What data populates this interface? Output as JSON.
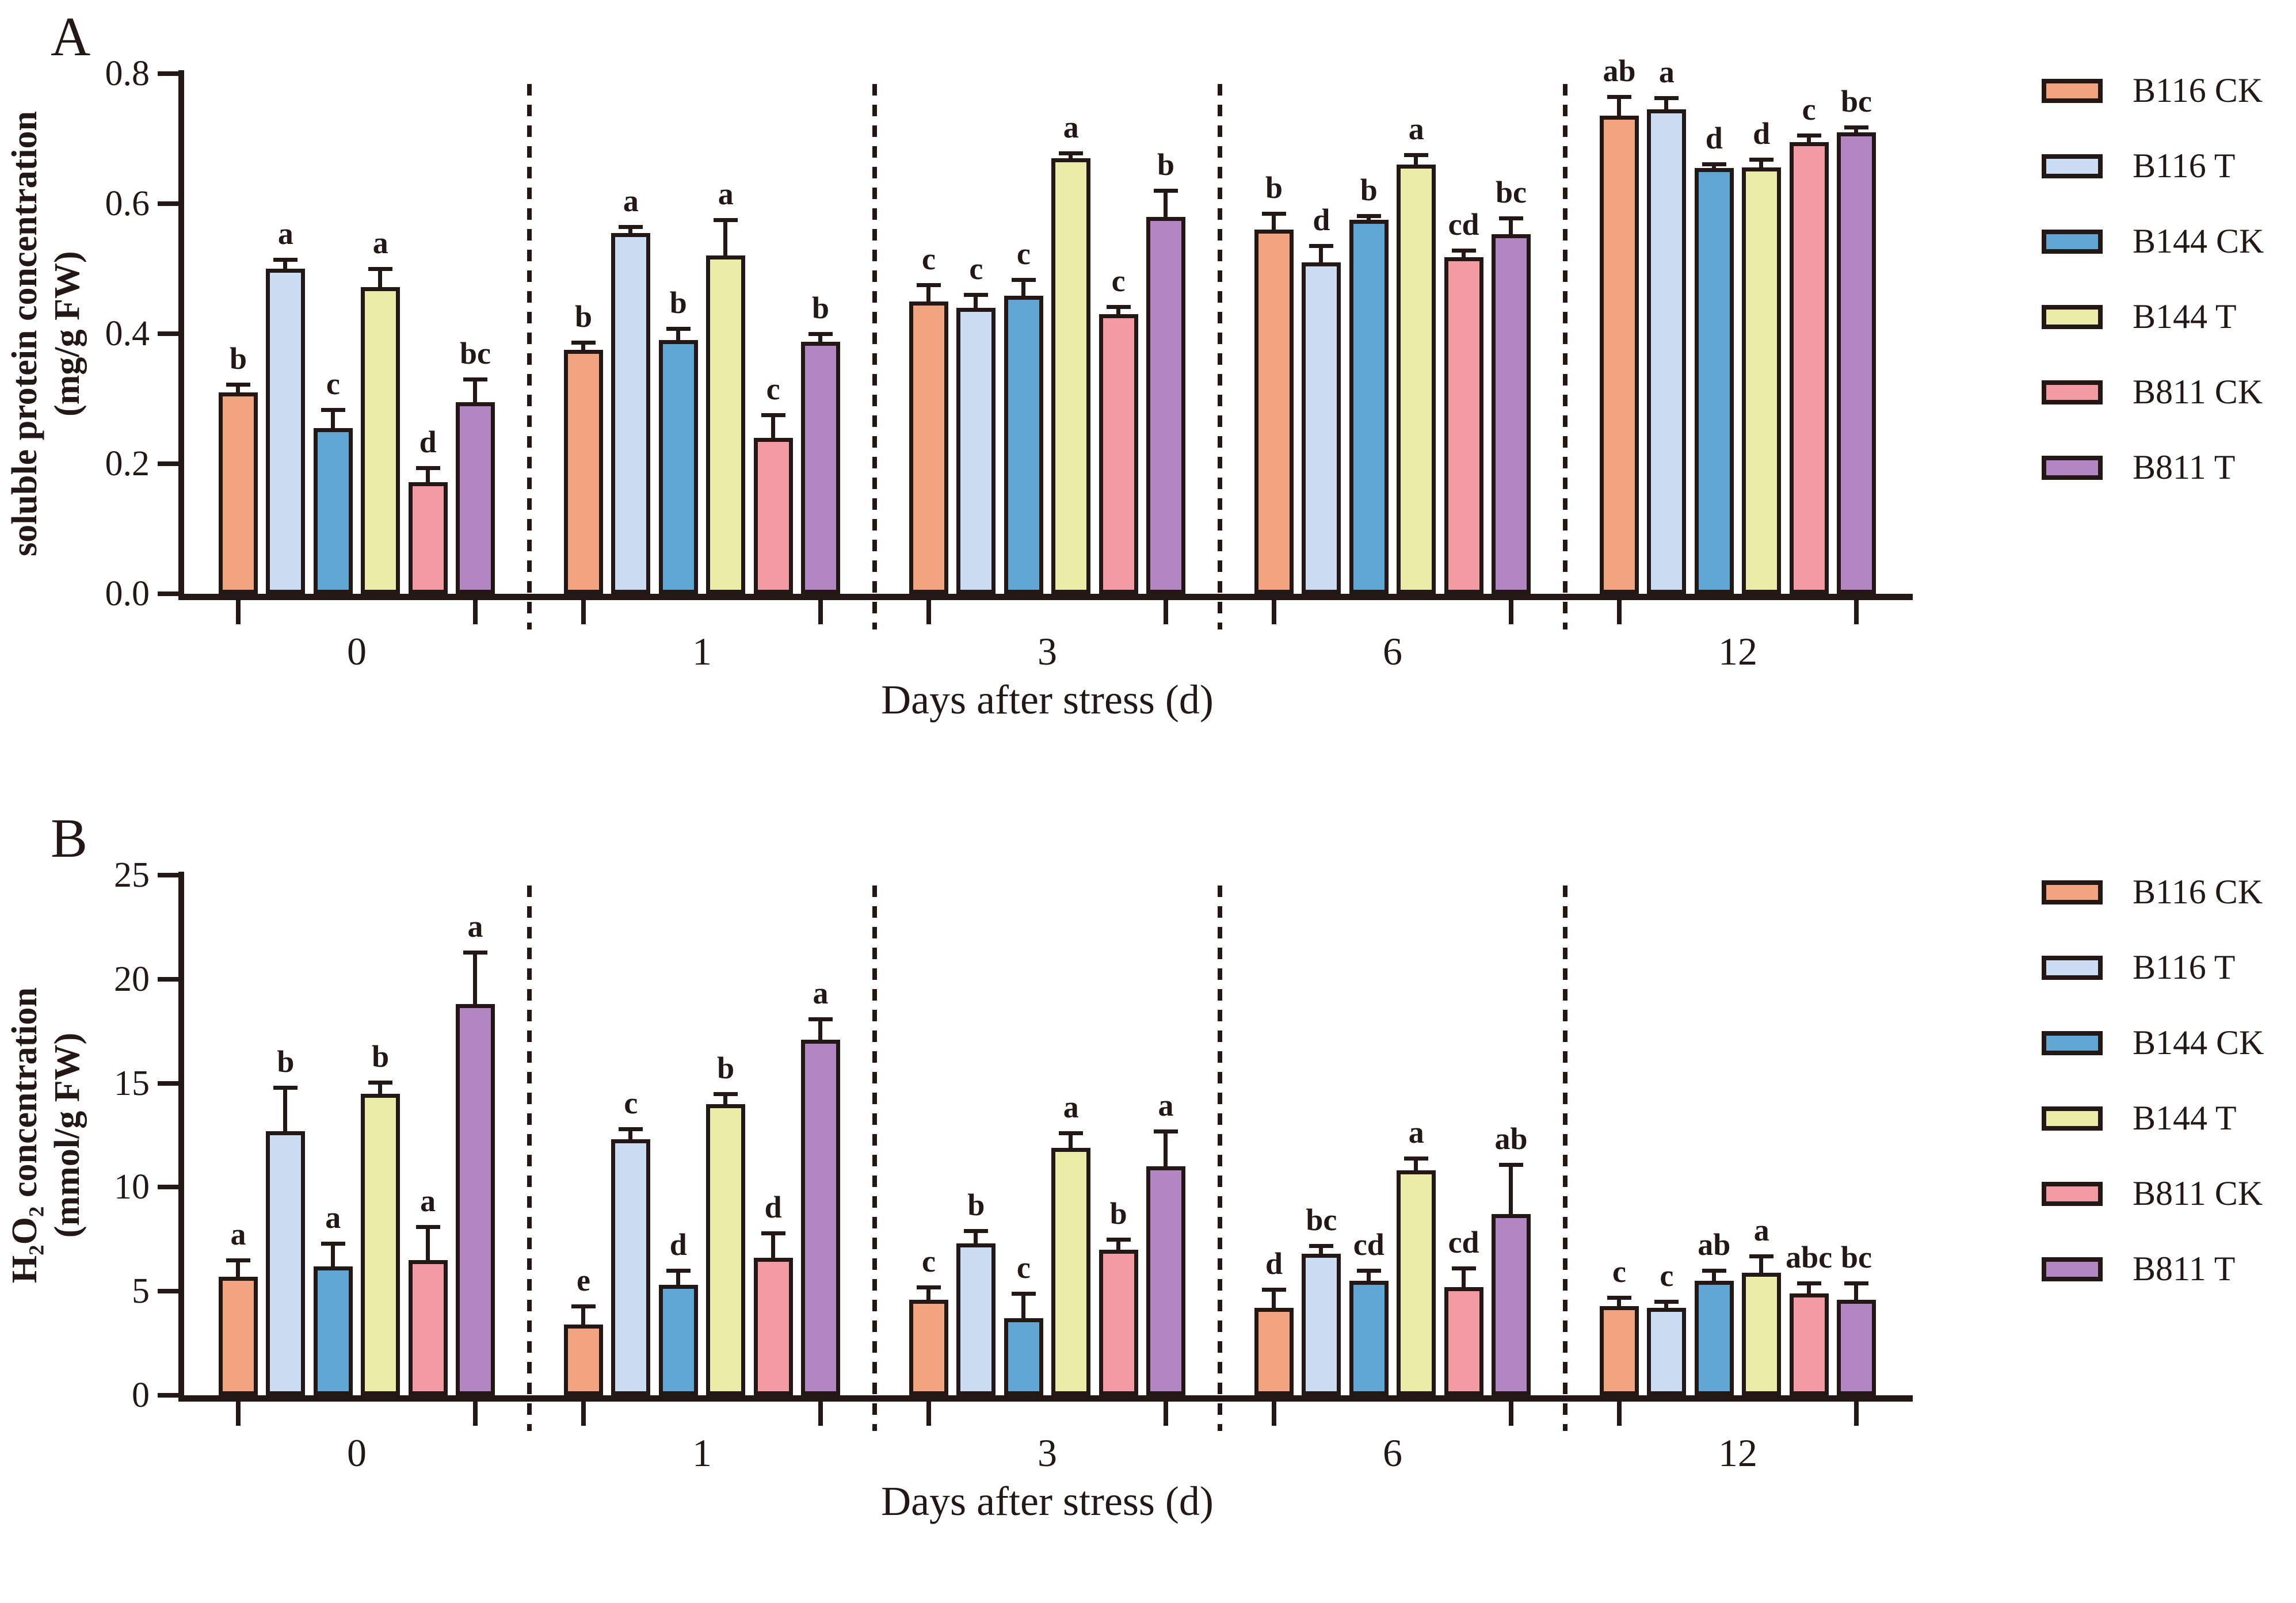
{
  "figure": {
    "background": "#FFFFFF",
    "stroke_color": "#231815"
  },
  "panels": [
    {
      "letter": "A",
      "ylabel_line1": "soluble protein concentration",
      "ylabel_line2": "(mg/g FW)",
      "xlabel": "Days after stress (d)"
    },
    {
      "letter": "B",
      "ylabel_line1": "H₂O₂ concentration",
      "ylabel_line2": "(mmol/g FW)",
      "xlabel": "Days after stress (d)"
    }
  ],
  "chart_data": [
    {
      "type": "bar",
      "panel": "A",
      "title": "",
      "xlabel": "Days after stress (d)",
      "ylabel": "soluble protein concentration (mg/g FW)",
      "categories": [
        "0",
        "1",
        "3",
        "6",
        "12"
      ],
      "ylim": [
        0,
        0.8
      ],
      "yticks": [
        0,
        0.2,
        0.4,
        0.6,
        0.8
      ],
      "ytick_labels": [
        "0.0",
        "0.2",
        "0.4",
        "0.6",
        "0.8"
      ],
      "grid": false,
      "legend_position": "right",
      "series": [
        {
          "name": "B116 CK",
          "color": "#F2A47E",
          "values": [
            0.31,
            0.375,
            0.45,
            0.56,
            0.735
          ],
          "errors": [
            0.012,
            0.012,
            0.025,
            0.025,
            0.03
          ],
          "letters": [
            "b",
            "b",
            "c",
            "b",
            "ab"
          ]
        },
        {
          "name": "B116 T",
          "color": "#CBDDF2",
          "values": [
            0.5,
            0.555,
            0.44,
            0.51,
            0.745
          ],
          "errors": [
            0.014,
            0.01,
            0.02,
            0.025,
            0.018
          ],
          "letters": [
            "a",
            "a",
            "c",
            "d",
            "a"
          ]
        },
        {
          "name": "B144 CK",
          "color": "#5FA6D2",
          "values": [
            0.255,
            0.39,
            0.458,
            0.575,
            0.655
          ],
          "errors": [
            0.028,
            0.018,
            0.025,
            0.006,
            0.006
          ],
          "letters": [
            "c",
            "b",
            "c",
            "b",
            "d"
          ]
        },
        {
          "name": "B144 T",
          "color": "#EAEDA8",
          "values": [
            0.472,
            0.52,
            0.67,
            0.66,
            0.656
          ],
          "errors": [
            0.028,
            0.055,
            0.008,
            0.015,
            0.012
          ],
          "letters": [
            "a",
            "a",
            "a",
            "a",
            "d"
          ]
        },
        {
          "name": "B811 CK",
          "color": "#F39AA2",
          "values": [
            0.172,
            0.24,
            0.43,
            0.518,
            0.695
          ],
          "errors": [
            0.022,
            0.035,
            0.012,
            0.01,
            0.01
          ],
          "letters": [
            "d",
            "c",
            "c",
            "cd",
            "c"
          ]
        },
        {
          "name": "B811 T",
          "color": "#B186C3",
          "values": [
            0.295,
            0.388,
            0.58,
            0.553,
            0.71
          ],
          "errors": [
            0.035,
            0.012,
            0.04,
            0.025,
            0.008
          ],
          "letters": [
            "bc",
            "b",
            "b",
            "bc",
            "bc"
          ]
        }
      ]
    },
    {
      "type": "bar",
      "panel": "B",
      "title": "",
      "xlabel": "Days after stress (d)",
      "ylabel": "H₂O₂ concentration (mmol/g FW)",
      "categories": [
        "0",
        "1",
        "3",
        "6",
        "12"
      ],
      "ylim": [
        0,
        25
      ],
      "yticks": [
        0,
        5,
        10,
        15,
        20,
        25
      ],
      "ytick_labels": [
        "0",
        "5",
        "10",
        "15",
        "20",
        "25"
      ],
      "grid": false,
      "legend_position": "right",
      "series": [
        {
          "name": "B116 CK",
          "color": "#F2A47E",
          "values": [
            5.7,
            3.4,
            4.6,
            4.2,
            4.3
          ],
          "errors": [
            0.8,
            0.9,
            0.6,
            0.9,
            0.4
          ],
          "letters": [
            "a",
            "e",
            "c",
            "d",
            "c"
          ]
        },
        {
          "name": "B116 T",
          "color": "#CBDDF2",
          "values": [
            12.7,
            12.3,
            7.3,
            6.8,
            4.2
          ],
          "errors": [
            2.1,
            0.5,
            0.6,
            0.4,
            0.3
          ],
          "letters": [
            "b",
            "c",
            "b",
            "bc",
            "c"
          ]
        },
        {
          "name": "B144 CK",
          "color": "#5FA6D2",
          "values": [
            6.2,
            5.3,
            3.7,
            5.5,
            5.5
          ],
          "errors": [
            1.1,
            0.7,
            1.2,
            0.5,
            0.5
          ],
          "letters": [
            "a",
            "d",
            "c",
            "cd",
            "ab"
          ]
        },
        {
          "name": "B144 T",
          "color": "#EAEDA8",
          "values": [
            14.5,
            14.0,
            11.9,
            10.8,
            5.9
          ],
          "errors": [
            0.55,
            0.5,
            0.7,
            0.6,
            0.8
          ],
          "letters": [
            "b",
            "b",
            "a",
            "a",
            "a"
          ]
        },
        {
          "name": "B811 CK",
          "color": "#F39AA2",
          "values": [
            6.5,
            6.6,
            7.0,
            5.2,
            4.9
          ],
          "errors": [
            1.6,
            1.2,
            0.5,
            0.9,
            0.5
          ],
          "letters": [
            "a",
            "d",
            "b",
            "cd",
            "abc"
          ]
        },
        {
          "name": "B811 T",
          "color": "#B186C3",
          "values": [
            18.8,
            17.1,
            11.0,
            8.7,
            4.6
          ],
          "errors": [
            2.5,
            1.0,
            1.7,
            2.4,
            0.8
          ],
          "letters": [
            "a",
            "a",
            "a",
            "ab",
            "bc"
          ]
        }
      ]
    }
  ]
}
